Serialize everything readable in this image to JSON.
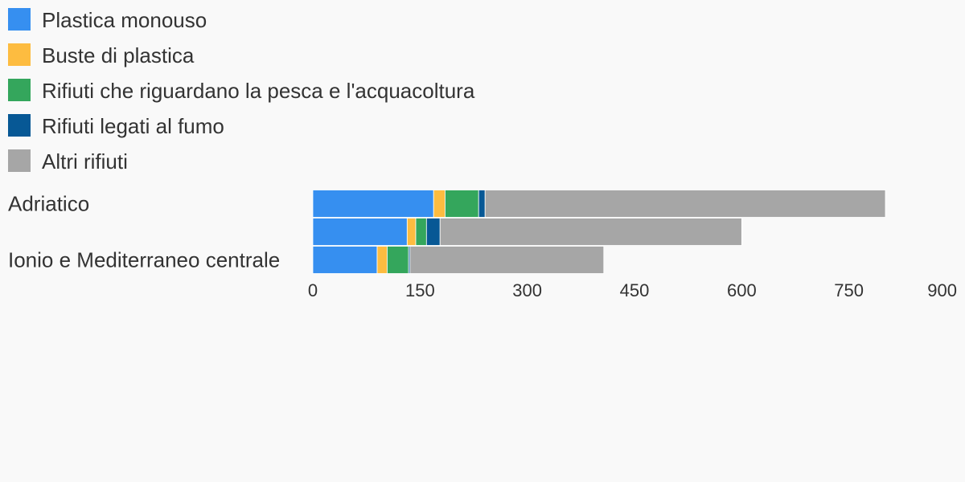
{
  "chart_data": {
    "type": "stacked-bar-horizontal",
    "categories": [
      "Adriatico",
      null,
      "Ionio e Mediterraneo centrale"
    ],
    "series": [
      {
        "name": "Plastica monouso",
        "color": "#368ff0",
        "values": [
          169,
          132,
          90
        ]
      },
      {
        "name": "Buste di plastica",
        "color": "#fdbc40",
        "values": [
          16,
          12,
          14
        ]
      },
      {
        "name": "Rifiuti che riguardano la pesca e l'acquacoltura",
        "color": "#34a65c",
        "values": [
          47,
          15,
          30
        ]
      },
      {
        "name": "Rifiuti legati al fumo",
        "color": "#075895",
        "values": [
          9,
          19,
          2
        ]
      },
      {
        "name": "Altri rifiuti",
        "color": "#a6a6a6",
        "values": [
          560,
          422,
          271
        ]
      }
    ],
    "xlim": [
      0,
      900
    ],
    "xticks": [
      0,
      150,
      300,
      450,
      600,
      750,
      900
    ],
    "grid": false
  }
}
